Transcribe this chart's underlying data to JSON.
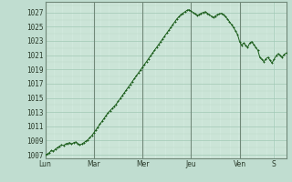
{
  "background_color": "#c0ddd0",
  "plot_bg_color": "#d0e8dc",
  "grid_major_color": "#a0c8b4",
  "grid_minor_color": "#b8d8c8",
  "line_color": "#1a5c1a",
  "marker_color": "#1a5c1a",
  "vline_color": "#708878",
  "ylim": [
    1006.5,
    1028.5
  ],
  "ytick_min": 1007,
  "ytick_max": 1027,
  "ytick_step": 2,
  "xlabel_days": [
    "Lun",
    "Mar",
    "Mer",
    "Jeu",
    "Ven",
    "S"
  ],
  "tick_fontsize": 5.5,
  "pressure_values": [
    1007.0,
    1007.1,
    1007.3,
    1007.6,
    1007.5,
    1007.8,
    1008.0,
    1008.2,
    1008.4,
    1008.3,
    1008.5,
    1008.6,
    1008.7,
    1008.5,
    1008.7,
    1008.8,
    1008.6,
    1008.4,
    1008.5,
    1008.7,
    1008.9,
    1009.1,
    1009.4,
    1009.7,
    1010.1,
    1010.5,
    1010.9,
    1011.3,
    1011.7,
    1012.1,
    1012.5,
    1012.9,
    1013.2,
    1013.5,
    1013.8,
    1014.1,
    1014.5,
    1014.9,
    1015.3,
    1015.7,
    1016.1,
    1016.5,
    1016.9,
    1017.3,
    1017.7,
    1018.1,
    1018.5,
    1018.9,
    1019.3,
    1019.7,
    1020.1,
    1020.5,
    1020.9,
    1021.3,
    1021.7,
    1022.1,
    1022.5,
    1022.9,
    1023.3,
    1023.7,
    1024.1,
    1024.5,
    1024.9,
    1025.3,
    1025.7,
    1026.1,
    1026.4,
    1026.7,
    1026.9,
    1027.1,
    1027.3,
    1027.4,
    1027.2,
    1027.0,
    1026.8,
    1026.6,
    1026.7,
    1026.9,
    1027.0,
    1027.1,
    1026.9,
    1026.7,
    1026.5,
    1026.3,
    1026.5,
    1026.7,
    1026.8,
    1026.9,
    1026.7,
    1026.4,
    1026.1,
    1025.7,
    1025.3,
    1024.9,
    1024.4,
    1023.9,
    1022.9,
    1022.4,
    1022.7,
    1022.4,
    1022.1,
    1022.7,
    1022.9,
    1022.5,
    1022.1,
    1021.7,
    1020.7,
    1020.4,
    1020.1,
    1020.5,
    1020.7,
    1020.3,
    1019.9,
    1020.4,
    1020.9,
    1021.2,
    1021.0,
    1020.7,
    1021.1,
    1021.3
  ]
}
